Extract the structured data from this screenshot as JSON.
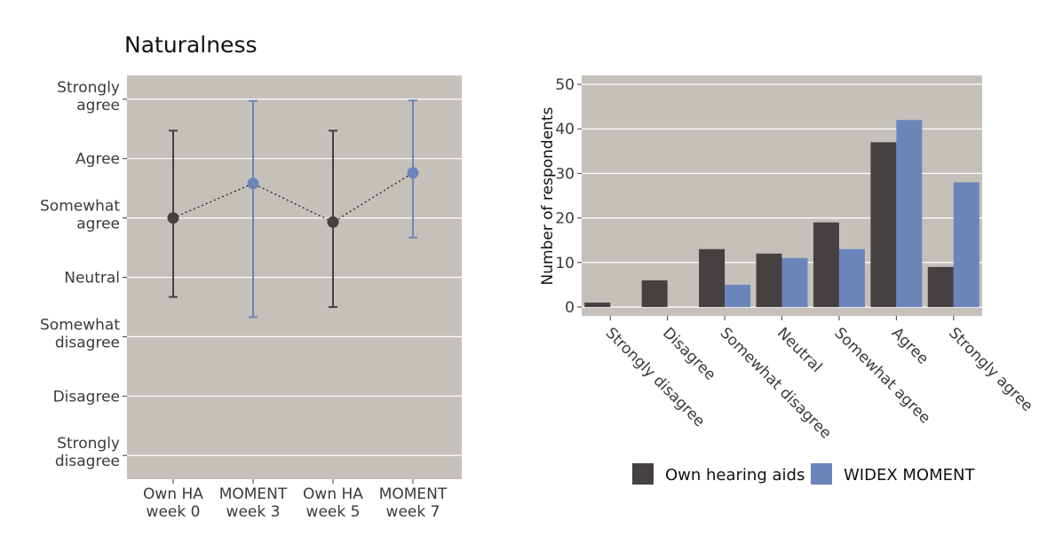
{
  "chart_data": [
    {
      "type": "line",
      "title": "Naturalness",
      "subtype": "mean with error bars (dotted connector)",
      "categories": [
        [
          "Own HA",
          "week 0"
        ],
        [
          "MOMENT",
          "week 3"
        ],
        [
          "Own HA",
          "week 5"
        ],
        [
          "MOMENT",
          "week 7"
        ]
      ],
      "y_tick_labels": [
        [
          "Strongly",
          "disagree"
        ],
        [
          "Disagree"
        ],
        [
          "Somewhat",
          "disagree"
        ],
        [
          "Neutral"
        ],
        [
          "Somewhat",
          "agree"
        ],
        [
          "Agree"
        ],
        [
          "Strongly",
          "agree"
        ]
      ],
      "ylim": [
        0.6,
        7.4
      ],
      "ylabel": "",
      "xlabel": "",
      "grid": true,
      "points": [
        {
          "mean": 5.0,
          "low": 3.67,
          "high": 6.47,
          "group": "own"
        },
        {
          "mean": 5.58,
          "low": 3.33,
          "high": 6.97,
          "group": "moment"
        },
        {
          "mean": 4.93,
          "low": 3.5,
          "high": 6.47,
          "group": "own"
        },
        {
          "mean": 5.76,
          "low": 4.67,
          "high": 6.98,
          "group": "moment"
        }
      ]
    },
    {
      "type": "bar",
      "title": "",
      "xlabel": "",
      "ylabel": "Number of respondents",
      "ylim": [
        -2,
        52
      ],
      "y_ticks": [
        0,
        10,
        20,
        30,
        40,
        50
      ],
      "grid": true,
      "legend_position": "bottom",
      "categories": [
        "Strongly disagree",
        "Disagree",
        "Somewhat disagree",
        "Neutral",
        "Somewhat agree",
        "Agree",
        "Strongly agree"
      ],
      "series": [
        {
          "name": "Own hearing aids",
          "values": [
            1,
            6,
            13,
            12,
            19,
            37,
            9
          ]
        },
        {
          "name": "WIDEX MOMENT",
          "values": [
            0,
            0,
            5,
            11,
            13,
            42,
            28
          ]
        }
      ]
    }
  ],
  "colors": {
    "panel_bg": "#c6c0bb",
    "grid": "#ffffff",
    "own": "#444140",
    "moment": "#6b85bb",
    "tick_text": "#3a3a3a"
  }
}
